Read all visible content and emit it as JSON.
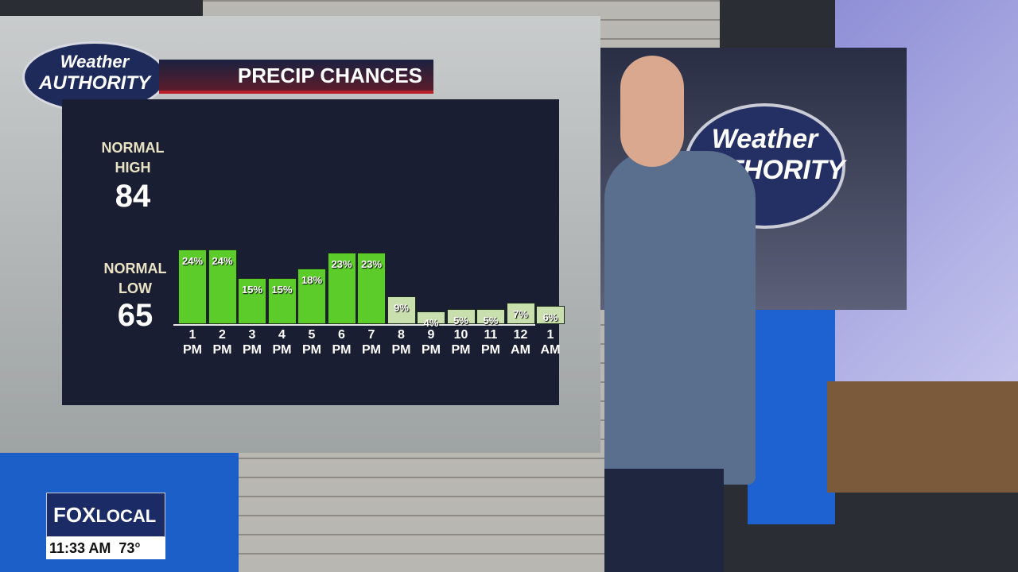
{
  "logo": {
    "line1": "Weather",
    "line2": "AUTHORITY"
  },
  "sidebar": {
    "high_label": "NORMAL HIGH",
    "high": 84,
    "low_label": "NORMAL LOW",
    "low": 65
  },
  "chart_data": {
    "type": "bar",
    "title": "PRECIP CHANCES",
    "categories": [
      "1 PM",
      "2 PM",
      "3 PM",
      "4 PM",
      "5 PM",
      "6 PM",
      "7 PM",
      "8 PM",
      "9 PM",
      "10 PM",
      "11 PM",
      "12 AM",
      "1 AM"
    ],
    "values": [
      24,
      24,
      15,
      15,
      18,
      23,
      23,
      9,
      4,
      5,
      5,
      7,
      6
    ],
    "value_labels": [
      "24%",
      "24%",
      "15%",
      "15%",
      "18%",
      "23%",
      "23%",
      "9%",
      "4%",
      "5%",
      "5%",
      "7%",
      "6%"
    ],
    "colors": [
      "#5ccc2a",
      "#5ccc2a",
      "#5ccc2a",
      "#5ccc2a",
      "#5ccc2a",
      "#5ccc2a",
      "#5ccc2a",
      "#c9dfae",
      "#c9dfae",
      "#c9dfae",
      "#c9dfae",
      "#c9dfae",
      "#c9dfae"
    ]
  },
  "bug": {
    "brand": "FOX",
    "sub": "LOCAL",
    "time": "11:33 AM",
    "temp": "73°"
  }
}
